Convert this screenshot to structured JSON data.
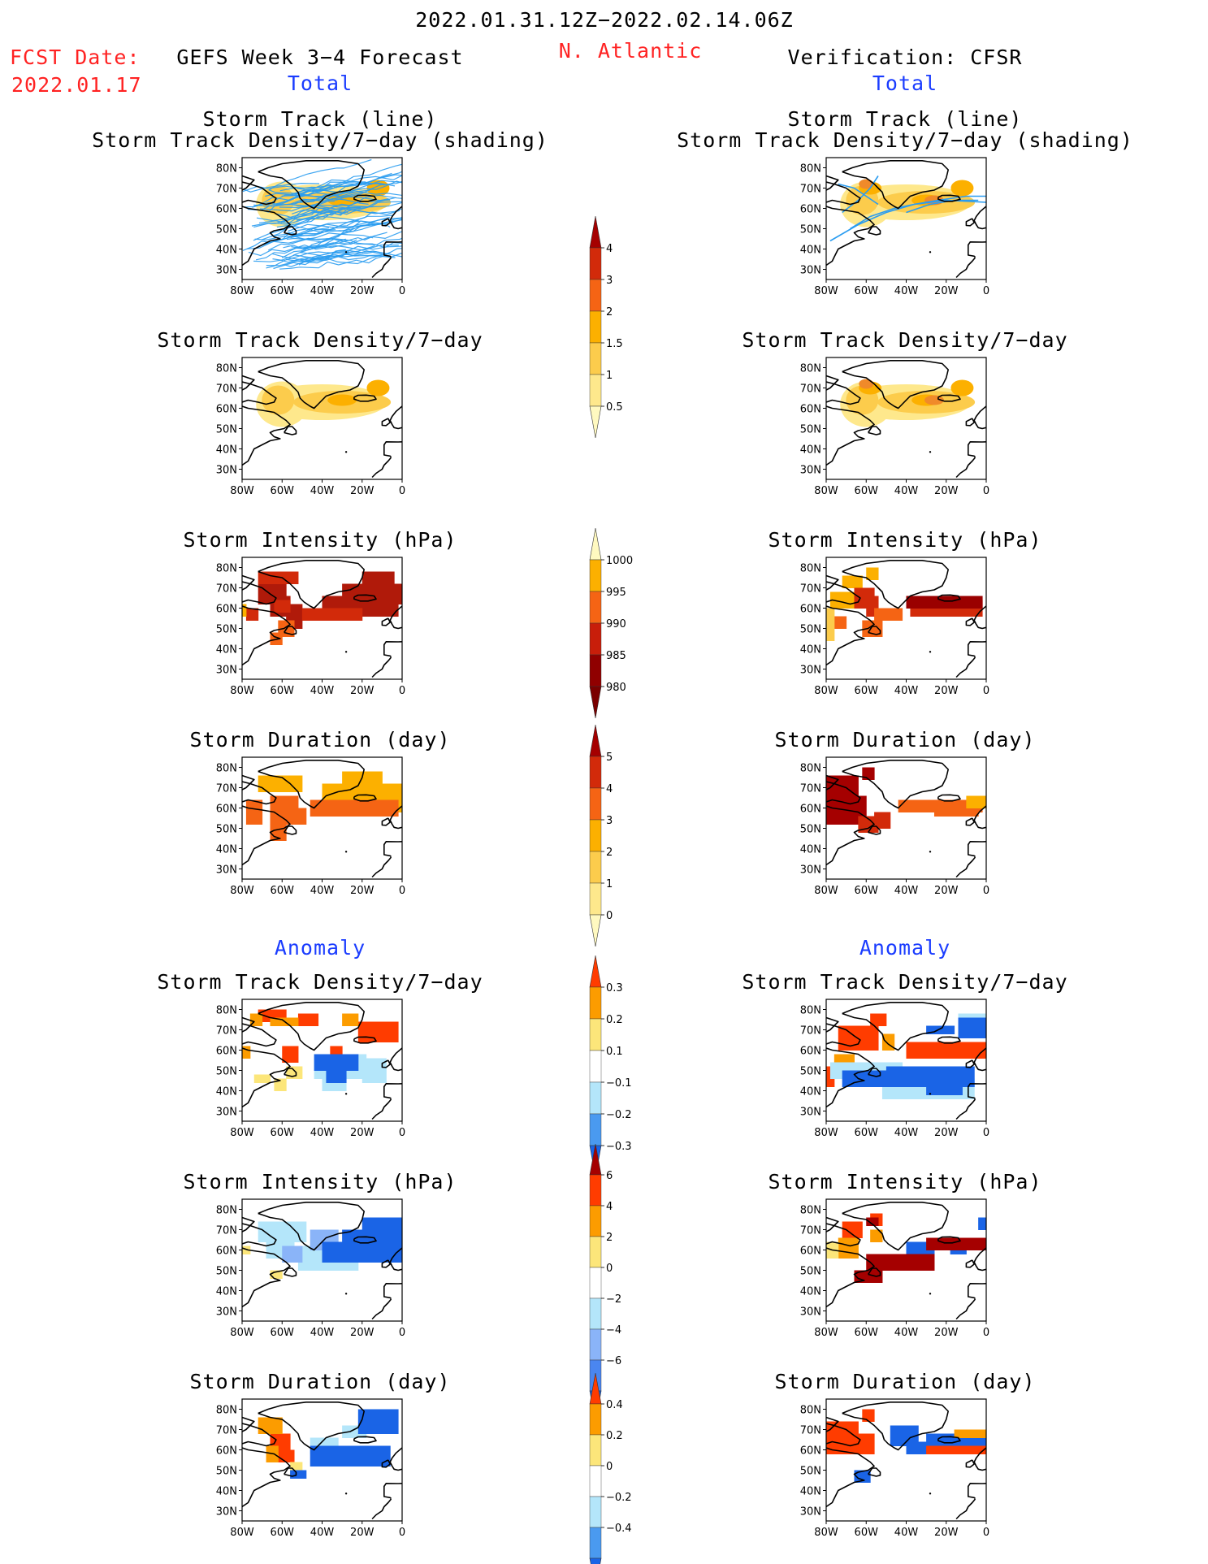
{
  "header": {
    "period": "2022.01.31.12Z−2022.02.14.06Z",
    "fcst_label": "FCST Date:",
    "fcst_date": "2022.01.17",
    "forecast_title": "GEFS Week 3−4 Forecast",
    "region": "N. Atlantic",
    "verification_title": "Verification: CFSR",
    "total_left": "Total",
    "total_right": "Total",
    "anomaly_left": "Anomaly",
    "anomaly_right": "Anomaly"
  },
  "panel_titles": {
    "track_line": "Storm Track (line)",
    "track_shading": "Storm Track Density/7−day (shading)",
    "density": "Storm Track Density/7−day",
    "intensity": "Storm Intensity (hPa)",
    "duration": "Storm Duration (day)"
  },
  "axes": {
    "lat_labels": [
      "80N",
      "70N",
      "60N",
      "50N",
      "40N",
      "30N"
    ],
    "lon_labels": [
      "80W",
      "60W",
      "40W",
      "20W",
      "0"
    ]
  },
  "colorbars": {
    "density": {
      "labels": [
        "4",
        "3",
        "2",
        "1.5",
        "1",
        "0.5"
      ],
      "colors": [
        "#a50000",
        "#d22a0a",
        "#f56414",
        "#fcb000",
        "#fccc4c",
        "#fee88c",
        "#fff9c0"
      ]
    },
    "intensity": {
      "labels": [
        "1000",
        "995",
        "990",
        "985",
        "980"
      ],
      "colors": [
        "#fff9c0",
        "#fcb000",
        "#f56414",
        "#c81e0a",
        "#900000",
        "#7a0000"
      ]
    },
    "duration": {
      "labels": [
        "5",
        "4",
        "3",
        "2",
        "1",
        "0"
      ],
      "colors": [
        "#a50000",
        "#d22a0a",
        "#f56414",
        "#fcb000",
        "#fccc4c",
        "#fee88c",
        "#fff9c0"
      ]
    },
    "density_anom": {
      "labels": [
        "0.3",
        "0.2",
        "0.1",
        "−0.1",
        "−0.2",
        "−0.3"
      ],
      "colors": [
        "#ff3c00",
        "#fc9c00",
        "#fce67a",
        "#ffffff",
        "#b4e6fa",
        "#4a9af0",
        "#1a64e6"
      ]
    },
    "intensity_anom": {
      "labels": [
        "6",
        "4",
        "2",
        "0",
        "−2",
        "−4",
        "−6"
      ],
      "colors": [
        "#a50000",
        "#ff3c00",
        "#fc9c00",
        "#fce67a",
        "#ffffff",
        "#b4e6fa",
        "#8ab4f8",
        "#4a86f0",
        "#1a64e6"
      ]
    },
    "duration_anom": {
      "labels": [
        "0.4",
        "0.2",
        "0",
        "−0.2",
        "−0.4"
      ],
      "colors": [
        "#ff3c00",
        "#fc9c00",
        "#fce67a",
        "#ffffff",
        "#b4e6fa",
        "#4a9af0",
        "#1a64e6"
      ]
    }
  },
  "colors": {
    "red_text": "#ff2222",
    "blue_text": "#1a3cff",
    "track_line": "#2a9cf0",
    "dark_red": "#a50000",
    "red": "#d22a0a",
    "orange": "#f56414",
    "amber": "#fcb000",
    "light_orange": "#fccc4c",
    "pale_yellow": "#fee88c",
    "light_blue": "#b4e6fa",
    "mid_blue": "#4a9af0",
    "dark_blue": "#1a64e6"
  }
}
